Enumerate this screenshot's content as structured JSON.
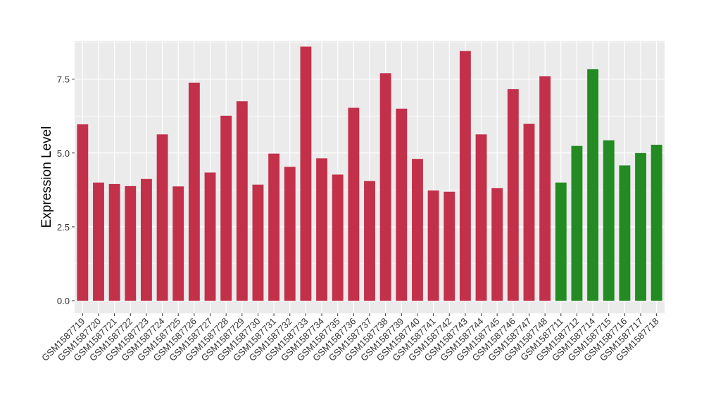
{
  "chart_data": {
    "type": "bar",
    "title": "",
    "xlabel": "",
    "ylabel": "Expression Level",
    "ylim": [
      0,
      8.8
    ],
    "yticks": [
      0.0,
      2.5,
      5.0,
      7.5
    ],
    "ytick_labels": [
      "0.0",
      "2.5",
      "5.0",
      "7.5"
    ],
    "grid": true,
    "legend": "none",
    "colors": {
      "red": "#C3304A",
      "green": "#228B22",
      "panel": "#EBEBEB",
      "grid": "#FFFFFF",
      "text": "#000000"
    },
    "categories": [
      "GSM1587719",
      "GSM1587720",
      "GSM1587721",
      "GSM1587722",
      "GSM1587723",
      "GSM1587724",
      "GSM1587725",
      "GSM1587726",
      "GSM1587727",
      "GSM1587728",
      "GSM1587729",
      "GSM1587730",
      "GSM1587731",
      "GSM1587732",
      "GSM1587733",
      "GSM1587734",
      "GSM1587735",
      "GSM1587736",
      "GSM1587737",
      "GSM1587738",
      "GSM1587739",
      "GSM1587740",
      "GSM1587741",
      "GSM1587742",
      "GSM1587743",
      "GSM1587744",
      "GSM1587745",
      "GSM1587746",
      "GSM1587747",
      "GSM1587748",
      "GSM1587711",
      "GSM1587712",
      "GSM1587714",
      "GSM1587715",
      "GSM1587716",
      "GSM1587717",
      "GSM1587718"
    ],
    "values": [
      5.97,
      4.0,
      3.95,
      3.88,
      4.12,
      5.63,
      3.87,
      7.38,
      4.34,
      6.26,
      6.75,
      3.93,
      4.98,
      4.53,
      8.6,
      4.82,
      4.27,
      6.53,
      4.05,
      7.7,
      6.5,
      4.8,
      3.73,
      3.69,
      8.45,
      5.63,
      3.81,
      7.16,
      5.99,
      7.6,
      4.0,
      5.24,
      7.84,
      5.43,
      4.58,
      5.0,
      5.28
    ],
    "bar_colors": [
      "red",
      "red",
      "red",
      "red",
      "red",
      "red",
      "red",
      "red",
      "red",
      "red",
      "red",
      "red",
      "red",
      "red",
      "red",
      "red",
      "red",
      "red",
      "red",
      "red",
      "red",
      "red",
      "red",
      "red",
      "red",
      "red",
      "red",
      "red",
      "red",
      "red",
      "green",
      "green",
      "green",
      "green",
      "green",
      "green",
      "green"
    ]
  }
}
